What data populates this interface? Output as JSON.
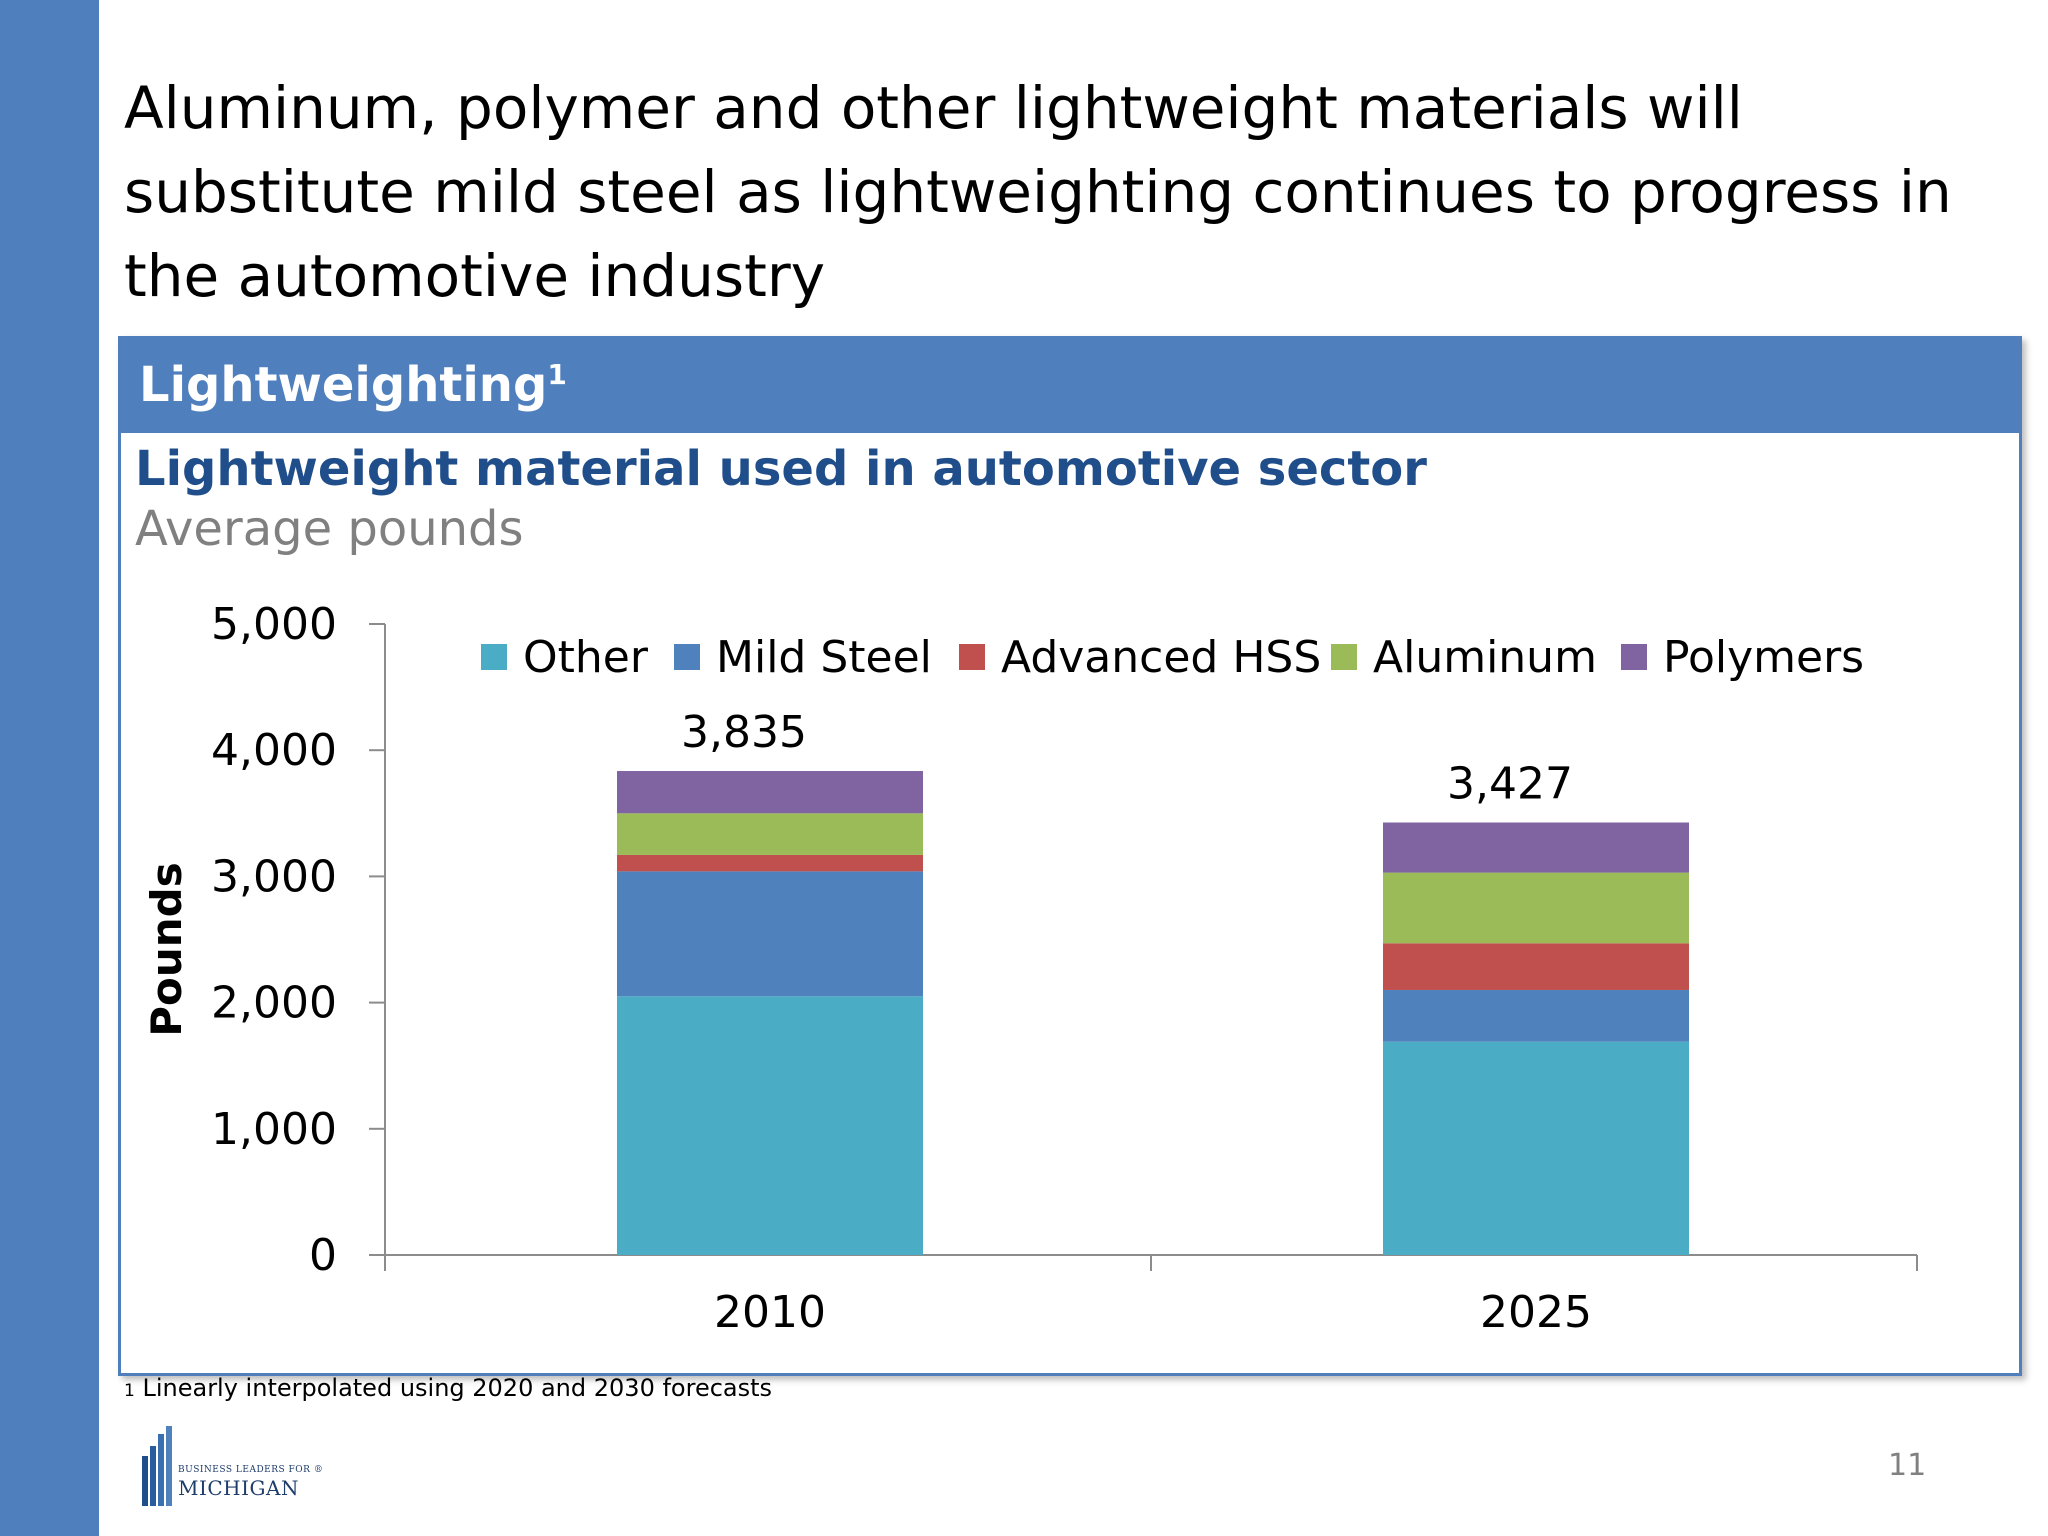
{
  "slide": {
    "title": "Aluminum, polymer and other lightweight materials will substitute mild steel as lightweighting continues to progress in the automotive industry",
    "page_number": "11"
  },
  "panel": {
    "header": "Lightweighting",
    "header_sup": "1"
  },
  "footnote": {
    "marker": "1",
    "text": "Linearly interpolated using 2020 and 2030 forecasts"
  },
  "logo": {
    "line1": "BUSINESS LEADERS FOR",
    "mark": "®",
    "line2": "MICHIGAN"
  },
  "colors": {
    "accent": "#4f7fbd",
    "chart_title": "#1f4e8a",
    "Other": "#4bacc6",
    "Mild Steel": "#4f81bd",
    "Advanced HSS": "#c0504d",
    "Aluminum": "#9bbb59",
    "Polymers": "#8064a2"
  },
  "chart_data": {
    "type": "bar",
    "stacked": true,
    "title": "Lightweight material used in automotive sector",
    "subtitle": "Average pounds",
    "xlabel": "",
    "ylabel": "Pounds",
    "categories": [
      "2010",
      "2025"
    ],
    "series": [
      {
        "name": "Other",
        "values": [
          2050,
          1690
        ]
      },
      {
        "name": "Mild Steel",
        "values": [
          990,
          410
        ]
      },
      {
        "name": "Advanced HSS",
        "values": [
          130,
          370
        ]
      },
      {
        "name": "Aluminum",
        "values": [
          330,
          560
        ]
      },
      {
        "name": "Polymers",
        "values": [
          335,
          397
        ]
      }
    ],
    "totals": [
      "3,835",
      "3,427"
    ],
    "ylim": [
      0,
      5000
    ],
    "yticks": [
      0,
      1000,
      2000,
      3000,
      4000,
      5000
    ],
    "ytick_labels": [
      "0",
      "1,000",
      "2,000",
      "3,000",
      "4,000",
      "5,000"
    ],
    "legend_position": "top",
    "grid": false
  }
}
